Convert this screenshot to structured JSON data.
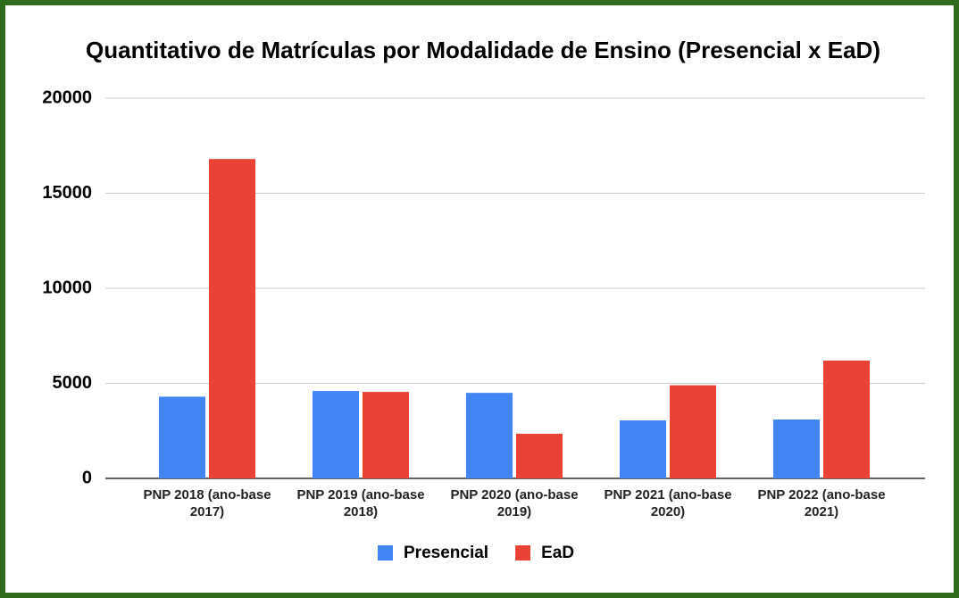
{
  "chart_data": {
    "type": "bar",
    "title": "Quantitativo de Matrículas por Modalidade de Ensino (Presencial x EaD)",
    "categories": [
      "PNP 2018 (ano-base 2017)",
      "PNP 2019 (ano-base 2018)",
      "PNP 2020 (ano-base 2019)",
      "PNP 2021 (ano-base 2020)",
      "PNP 2022 (ano-base 2021)"
    ],
    "series": [
      {
        "name": "Presencial",
        "color": "#4285f4",
        "values": [
          4300,
          4600,
          4500,
          3050,
          3100
        ]
      },
      {
        "name": "EaD",
        "color": "#ea4335",
        "values": [
          16800,
          4550,
          2350,
          4900,
          6200
        ]
      }
    ],
    "ylim": [
      0,
      20000
    ],
    "yticks": [
      0,
      5000,
      10000,
      15000,
      20000
    ],
    "grid": true,
    "legend": "bottom"
  }
}
